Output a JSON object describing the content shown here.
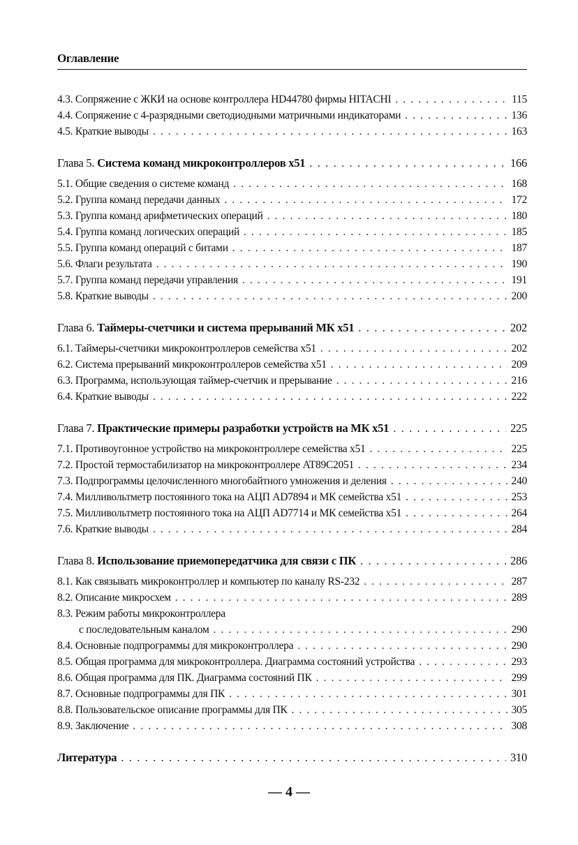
{
  "header": {
    "title": "Оглавление"
  },
  "groups": [
    {
      "items": [
        {
          "title": "4.3. Сопряжение с ЖКИ на основе контроллера HD44780 фирмы HITACHI",
          "page": "115"
        },
        {
          "title": "4.4. Сопряжение с 4-разрядными светодиодными матричными индикаторами",
          "page": "136"
        },
        {
          "title": "4.5. Краткие выводы",
          "page": "163"
        }
      ]
    },
    {
      "chapter": {
        "prefix": "Глава 5. ",
        "title": "Система команд микроконтроллеров x51",
        "page": "166"
      },
      "items": [
        {
          "title": "5.1. Общие сведения о системе команд",
          "page": "168"
        },
        {
          "title": "5.2. Группа команд передачи данных",
          "page": "172"
        },
        {
          "title": "5.3. Группа команд арифметических операций",
          "page": "180"
        },
        {
          "title": "5.4. Группа команд логических операций",
          "page": "185"
        },
        {
          "title": "5.5. Группа команд операций с битами",
          "page": "187"
        },
        {
          "title": "5.6. Флаги результата",
          "page": "190"
        },
        {
          "title": "5.7. Группа команд передачи управления",
          "page": "191"
        },
        {
          "title": "5.8. Краткие выводы",
          "page": "200"
        }
      ]
    },
    {
      "chapter": {
        "prefix": "Глава 6. ",
        "title": "Таймеры-счетчики и система прерываний МК x51",
        "page": "202"
      },
      "items": [
        {
          "title": "6.1. Таймеры-счетчики микроконтроллеров семейства x51",
          "page": "202"
        },
        {
          "title": "6.2. Система прерываний микроконтроллеров семейства x51",
          "page": "209"
        },
        {
          "title": "6.3. Программа, использующая таймер-счетчик и прерывание",
          "page": "216"
        },
        {
          "title": "6.4. Краткие выводы",
          "page": "222"
        }
      ]
    },
    {
      "chapter": {
        "prefix": "Глава 7. ",
        "title": "Практические примеры разработки устройств на МК x51",
        "page": "225"
      },
      "items": [
        {
          "title": "7.1. Противоугонное устройство на микроконтроллере семейства x51",
          "page": "225"
        },
        {
          "title": "7.2. Простой термостабилизатор на микроконтроллере AT89C2051",
          "page": "234"
        },
        {
          "title": "7.3. Подпрограммы целочисленного многобайтного умножения и деления",
          "page": "240"
        },
        {
          "title": "7.4. Милливольтметр постоянного тока на АЦП AD7894 и МК семейства x51",
          "page": "253"
        },
        {
          "title": "7.5. Милливольтметр постоянного тока на АЦП AD7714 и МК семейства x51",
          "page": "264"
        },
        {
          "title": "7.6. Краткие выводы",
          "page": "284"
        }
      ]
    },
    {
      "chapter": {
        "prefix": "Глава 8. ",
        "title": "Использование приемопередатчика для связи с ПК",
        "page": "286"
      },
      "items": [
        {
          "title": "8.1. Как связывать микроконтроллер и компьютер по каналу RS-232",
          "page": "287"
        },
        {
          "title": "8.2. Описание микросхем",
          "page": "289"
        },
        {
          "title": "8.3. Режим работы микроконтроллера",
          "continuation": "с последовательным каналом",
          "page": "290"
        },
        {
          "title": "8.4. Основные подпрограммы для микроконтроллера",
          "page": "290"
        },
        {
          "title": "8.5. Общая программа для микроконтроллера. Диаграмма состояний устройства",
          "page": "293"
        },
        {
          "title": "8.6. Общая программа для ПК.  Диаграмма состояний ПК",
          "page": "299"
        },
        {
          "title": "8.7. Основные подпрограммы для ПК",
          "page": "301"
        },
        {
          "title": "8.8. Пользовательское описание программы для ПК",
          "page": "305"
        },
        {
          "title": "8.9. Заключение",
          "page": "308"
        }
      ]
    }
  ],
  "literature": {
    "title": "Литература",
    "page": "310"
  },
  "footer": {
    "page_number": "— 4 —"
  }
}
